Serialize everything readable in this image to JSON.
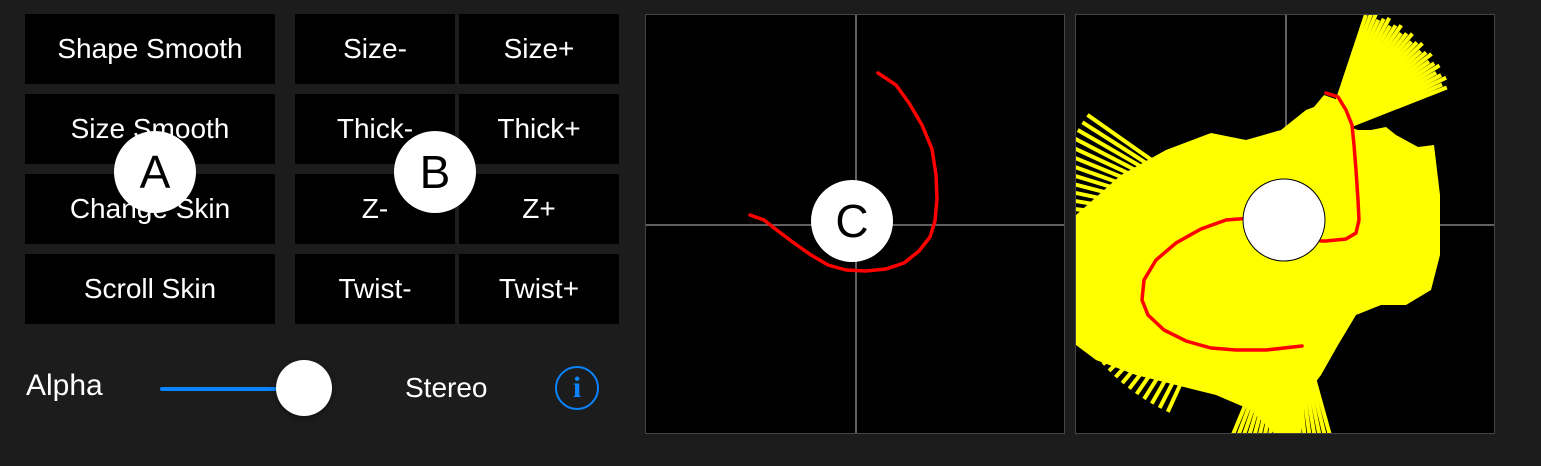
{
  "buttons": {
    "shape_smooth": "Shape Smooth",
    "size_smooth": "Size Smooth",
    "change_skin": "Change Skin",
    "scroll_skin": "Scroll Skin",
    "size_minus": "Size-",
    "size_plus": "Size+",
    "thick_minus": "Thick-",
    "thick_plus": "Thick+",
    "z_minus": "Z-",
    "z_plus": "Z+",
    "twist_minus": "Twist-",
    "twist_plus": "Twist+"
  },
  "controls": {
    "alpha_label": "Alpha",
    "alpha_value": 1.0,
    "stereo_label": "Stereo",
    "info_glyph": "i"
  },
  "markers": {
    "a": "A",
    "b": "B",
    "c": "C"
  },
  "colors": {
    "background": "#1c1c1c",
    "button": "#000000",
    "accent": "#0a84ff",
    "curve": "#ff0000",
    "skin": "#ffff00",
    "grid": "#808080"
  },
  "icons": {
    "info": "info-icon"
  }
}
